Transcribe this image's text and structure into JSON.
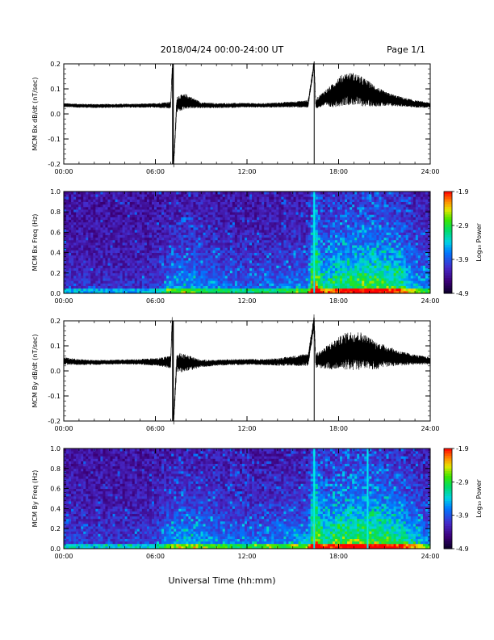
{
  "header": {
    "date_range": "2018/04/24  00:00-24:00 UT",
    "page": "Page 1/1"
  },
  "footer": {
    "xlabel": "Universal Time (hh:mm)"
  },
  "colors": {
    "spike": "#00e8e8",
    "trace": "#000000",
    "background": "#ffffff"
  },
  "chart_data": [
    {
      "type": "line",
      "ylabel": "MCM Bx dB/dt (nT/sec)",
      "xlim": [
        0,
        24
      ],
      "ylim": [
        -0.2,
        0.2
      ],
      "x_ticks": [
        "00:00",
        "06:00",
        "12:00",
        "18:00",
        "24:00"
      ],
      "y_ticks": [
        "0.2",
        "0.1",
        "0.0",
        "-0.1",
        "-0.2"
      ],
      "series": [
        {
          "x": [
            0,
            1,
            2,
            3,
            4,
            5,
            6,
            7,
            7.1,
            7.2,
            7.4,
            8,
            9,
            10,
            11,
            12,
            13,
            14,
            15,
            16,
            16.4,
            16.5,
            17,
            17.5,
            18,
            18.5,
            19,
            19.5,
            20,
            20.5,
            21,
            22,
            23,
            24
          ],
          "y": [
            0.035,
            0.033,
            0.032,
            0.032,
            0.033,
            0.033,
            0.034,
            0.035,
            0.18,
            -0.2,
            0.04,
            0.05,
            0.035,
            0.033,
            0.034,
            0.035,
            0.034,
            0.036,
            0.038,
            0.04,
            0.2,
            0.04,
            0.06,
            0.07,
            0.09,
            0.1,
            0.1,
            0.09,
            0.08,
            0.07,
            0.06,
            0.05,
            0.04,
            0.035
          ]
        }
      ],
      "envelope_halfwidth": [
        0.008,
        0.008,
        0.008,
        0.008,
        0.008,
        0.008,
        0.009,
        0.015,
        0.015,
        0.015,
        0.035,
        0.03,
        0.012,
        0.01,
        0.01,
        0.009,
        0.009,
        0.01,
        0.012,
        0.015,
        0.02,
        0.02,
        0.03,
        0.045,
        0.06,
        0.065,
        0.065,
        0.06,
        0.05,
        0.04,
        0.03,
        0.02,
        0.015,
        0.01
      ]
    },
    {
      "type": "heatmap",
      "ylabel": "MCM Bx Freq (Hz)",
      "xlim": [
        0,
        24
      ],
      "ylim": [
        0,
        1.0
      ],
      "x_ticks": [
        "00:00",
        "06:00",
        "12:00",
        "18:00",
        "24:00"
      ],
      "y_ticks": [
        "1.0",
        "0.8",
        "0.6",
        "0.4",
        "0.2",
        "0.0"
      ],
      "colorbar": {
        "label": "Log₁₀ Power",
        "ticks": [
          "-1.9",
          "-2.9",
          "-3.9",
          "-4.9"
        ],
        "range": [
          -4.9,
          -1.9
        ]
      },
      "activity_profile": {
        "hours": [
          0,
          2,
          4,
          6,
          7,
          8,
          10,
          12,
          14,
          16,
          16.4,
          17,
          18,
          19,
          20,
          21,
          22,
          23,
          24
        ],
        "level": [
          0.15,
          0.12,
          0.12,
          0.15,
          0.35,
          0.4,
          0.3,
          0.25,
          0.3,
          0.35,
          1.0,
          0.55,
          0.65,
          0.7,
          0.72,
          0.7,
          0.65,
          0.45,
          0.3
        ]
      },
      "spikes": [
        {
          "hour": 16.4,
          "color": "cyan"
        }
      ]
    },
    {
      "type": "line",
      "ylabel": "MCM By dB/dt (nT/sec)",
      "xlim": [
        0,
        24
      ],
      "ylim": [
        -0.2,
        0.2
      ],
      "x_ticks": [
        "00:00",
        "06:00",
        "12:00",
        "18:00",
        "24:00"
      ],
      "y_ticks": [
        "0.2",
        "0.1",
        "0.0",
        "-0.1",
        "-0.2"
      ],
      "series": [
        {
          "x": [
            0,
            1,
            2,
            3,
            4,
            5,
            6,
            7,
            7.1,
            7.2,
            7.4,
            8,
            9,
            10,
            11,
            12,
            13,
            14,
            15,
            16,
            16.4,
            16.5,
            17,
            17.5,
            18,
            18.5,
            19,
            19.5,
            20,
            20.5,
            21,
            22,
            23,
            24
          ],
          "y": [
            0.04,
            0.035,
            0.034,
            0.035,
            0.036,
            0.036,
            0.036,
            0.035,
            0.2,
            -0.2,
            0.035,
            0.03,
            0.03,
            0.032,
            0.035,
            0.036,
            0.035,
            0.036,
            0.04,
            0.045,
            0.2,
            0.04,
            0.05,
            0.06,
            0.07,
            0.08,
            0.08,
            0.08,
            0.07,
            0.06,
            0.06,
            0.05,
            0.045,
            0.04
          ]
        }
      ],
      "envelope_halfwidth": [
        0.015,
        0.012,
        0.01,
        0.01,
        0.01,
        0.012,
        0.015,
        0.025,
        0.025,
        0.025,
        0.04,
        0.035,
        0.015,
        0.012,
        0.012,
        0.012,
        0.012,
        0.015,
        0.02,
        0.025,
        0.03,
        0.03,
        0.04,
        0.055,
        0.065,
        0.075,
        0.08,
        0.075,
        0.065,
        0.055,
        0.045,
        0.03,
        0.02,
        0.015
      ]
    },
    {
      "type": "heatmap",
      "ylabel": "MCM By Freq (Hz)",
      "xlim": [
        0,
        24
      ],
      "ylim": [
        0,
        1.0
      ],
      "x_ticks": [
        "00:00",
        "06:00",
        "12:00",
        "18:00",
        "24:00"
      ],
      "y_ticks": [
        "1.0",
        "0.8",
        "0.6",
        "0.4",
        "0.2",
        "0.0"
      ],
      "colorbar": {
        "label": "Log₁₀ Power",
        "ticks": [
          "-1.9",
          "-2.9",
          "-3.9",
          "-4.9"
        ],
        "range": [
          -4.9,
          -1.9
        ]
      },
      "activity_profile": {
        "hours": [
          0,
          2,
          4,
          6,
          7,
          8,
          10,
          12,
          14,
          16,
          16.4,
          17,
          18,
          19,
          20,
          21,
          22,
          23,
          24
        ],
        "level": [
          0.2,
          0.15,
          0.15,
          0.2,
          0.4,
          0.45,
          0.35,
          0.3,
          0.35,
          0.4,
          1.0,
          0.6,
          0.7,
          0.75,
          0.75,
          0.7,
          0.65,
          0.5,
          0.35
        ]
      },
      "spikes": [
        {
          "hour": 16.4,
          "color": "cyan"
        },
        {
          "hour": 19.9,
          "color": "cyan"
        }
      ]
    }
  ]
}
